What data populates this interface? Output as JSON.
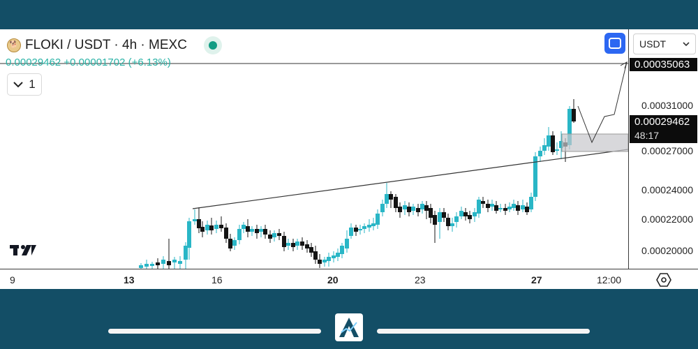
{
  "header": {
    "symbol_title": "FLOKI / USDT · 4h · MEXC",
    "coin_icon": "floki-coin-icon",
    "status_color": "#129d84"
  },
  "ohlc": {
    "line": "0.00029462 +0.00001702 (+6.13%)"
  },
  "collapse": {
    "label": "1"
  },
  "currency_select": {
    "value": "USDT"
  },
  "price_axis": {
    "labels": [
      "0.00031000",
      "0.00027000",
      "0.00024000",
      "0.00022000",
      "0.00020000"
    ],
    "target_label": "0.00035063",
    "current_price_label": "0.00029462",
    "countdown_label": "48:17"
  },
  "time_axis": {
    "labels": [
      {
        "text": "9",
        "bold": false
      },
      {
        "text": "13",
        "bold": true
      },
      {
        "text": "16",
        "bold": false
      },
      {
        "text": "20",
        "bold": true
      },
      {
        "text": "23",
        "bold": false
      },
      {
        "text": "27",
        "bold": true
      },
      {
        "text": "12:00",
        "bold": false
      }
    ]
  },
  "colors": {
    "up": "#29b6c6",
    "down": "#141414",
    "accent": "#2c67f2",
    "frame": "#134e66"
  },
  "icons": [
    "chevron-down-icon",
    "fullscreen-icon",
    "tradingview-logo-icon",
    "settings-hexagon-icon",
    "brand-a-logo-icon"
  ]
}
